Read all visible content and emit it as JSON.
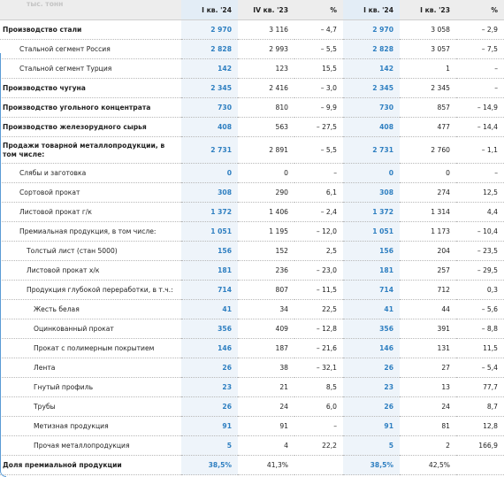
{
  "header": {
    "unit": "тыс. тонн",
    "columns": [
      "I кв. '24",
      "IV кв. '23",
      "%",
      "I кв. '24",
      "I кв. '23",
      "%"
    ]
  },
  "table": {
    "rows": [
      {
        "label": "Производство стали",
        "level": 0,
        "bold": true,
        "cells": [
          "2 970",
          "3 116",
          "– 4,7",
          "2 970",
          "3 058",
          "– 2,9"
        ]
      },
      {
        "label": "Стальной сегмент Россия",
        "level": 1,
        "bold": false,
        "cells": [
          "2 828",
          "2 993",
          "– 5,5",
          "2 828",
          "3 057",
          "– 7,5"
        ]
      },
      {
        "label": "Стальной сегмент Турция",
        "level": 1,
        "bold": false,
        "cells": [
          "142",
          "123",
          "15,5",
          "142",
          "1",
          "–"
        ]
      },
      {
        "label": "Производство чугуна",
        "level": 0,
        "bold": true,
        "cells": [
          "2 345",
          "2 416",
          "– 3,0",
          "2 345",
          "2 345",
          "–"
        ]
      },
      {
        "label": "Производство угольного концентрата",
        "level": 0,
        "bold": true,
        "cells": [
          "730",
          "810",
          "– 9,9",
          "730",
          "857",
          "– 14,9"
        ]
      },
      {
        "label": "Производство железорудного сырья",
        "level": 0,
        "bold": true,
        "cells": [
          "408",
          "563",
          "– 27,5",
          "408",
          "477",
          "– 14,4"
        ]
      },
      {
        "label": "Продажи товарной металлопродукции, в том числе:",
        "level": 0,
        "bold": true,
        "cells": [
          "2 731",
          "2 891",
          "– 5,5",
          "2 731",
          "2 760",
          "– 1,1"
        ]
      },
      {
        "label": "Слябы и заготовка",
        "level": 1,
        "bold": false,
        "cells": [
          "0",
          "0",
          "–",
          "0",
          "0",
          "–"
        ]
      },
      {
        "label": "Сортовой прокат",
        "level": 1,
        "bold": false,
        "cells": [
          "308",
          "290",
          "6,1",
          "308",
          "274",
          "12,5"
        ]
      },
      {
        "label": "Листовой прокат г/к",
        "level": 1,
        "bold": false,
        "cells": [
          "1 372",
          "1 406",
          "– 2,4",
          "1 372",
          "1 314",
          "4,4"
        ]
      },
      {
        "label": "Премиальная продукция, в том числе:",
        "level": 1,
        "bold": false,
        "cells": [
          "1 051",
          "1 195",
          "– 12,0",
          "1 051",
          "1 173",
          "– 10,4"
        ]
      },
      {
        "label": "Толстый лист (стан 5000)",
        "level": 2,
        "bold": false,
        "cells": [
          "156",
          "152",
          "2,5",
          "156",
          "204",
          "– 23,5"
        ]
      },
      {
        "label": "Листовой прокат х/к",
        "level": 2,
        "bold": false,
        "cells": [
          "181",
          "236",
          "– 23,0",
          "181",
          "257",
          "– 29,5"
        ]
      },
      {
        "label": "Продукция глубокой переработки, в т.ч.:",
        "level": 2,
        "bold": false,
        "cells": [
          "714",
          "807",
          "– 11,5",
          "714",
          "712",
          "0,3"
        ]
      },
      {
        "label": "Жесть белая",
        "level": 3,
        "bold": false,
        "cells": [
          "41",
          "34",
          "22,5",
          "41",
          "44",
          "– 5,6"
        ]
      },
      {
        "label": "Оцинкованный прокат",
        "level": 3,
        "bold": false,
        "cells": [
          "356",
          "409",
          "– 12,8",
          "356",
          "391",
          "– 8,8"
        ]
      },
      {
        "label": "Прокат с полимерным покрытием",
        "level": 3,
        "bold": false,
        "cells": [
          "146",
          "187",
          "– 21,6",
          "146",
          "131",
          "11,5"
        ]
      },
      {
        "label": "Лента",
        "level": 3,
        "bold": false,
        "cells": [
          "26",
          "38",
          "– 32,1",
          "26",
          "27",
          "– 5,4"
        ]
      },
      {
        "label": "Гнутый профиль",
        "level": 3,
        "bold": false,
        "cells": [
          "23",
          "21",
          "8,5",
          "23",
          "13",
          "77,7"
        ]
      },
      {
        "label": "Трубы",
        "level": 3,
        "bold": false,
        "cells": [
          "26",
          "24",
          "6,0",
          "26",
          "24",
          "8,7"
        ]
      },
      {
        "label": "Метизная продукция",
        "level": 3,
        "bold": false,
        "cells": [
          "91",
          "91",
          "–",
          "91",
          "81",
          "12,8"
        ]
      },
      {
        "label": "Прочая металлопродукция",
        "level": 3,
        "bold": false,
        "cells": [
          "5",
          "4",
          "22,2",
          "5",
          "2",
          "166,9"
        ]
      },
      {
        "label": "Доля премиальной продукции",
        "level": 0,
        "bold": true,
        "cells": [
          "38,5%",
          "41,3%",
          null,
          "38,5%",
          "42,5%",
          null
        ]
      }
    ]
  }
}
